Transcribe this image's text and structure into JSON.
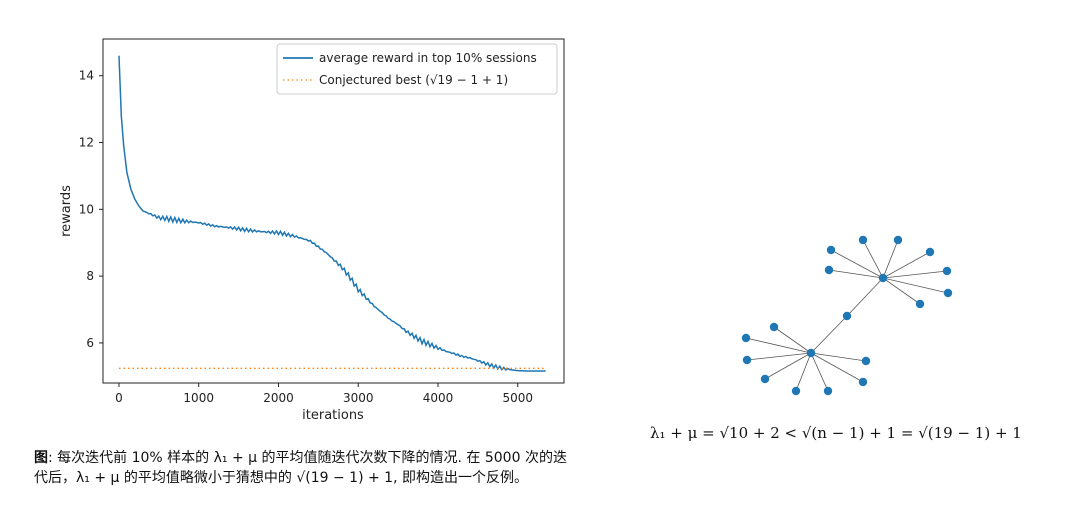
{
  "chart_data": {
    "type": "line",
    "xlabel": "iterations",
    "ylabel": "rewards",
    "xlim": [
      -200,
      5580
    ],
    "ylim": [
      4.8,
      15.1
    ],
    "xticks": [
      0,
      1000,
      2000,
      3000,
      4000,
      5000
    ],
    "yticks": [
      6,
      8,
      10,
      12,
      14
    ],
    "legend_position": "top-right",
    "series": [
      {
        "name": "average reward in top 10% sessions",
        "color": "#1f77b4",
        "style": "solid",
        "x": [
          0,
          30,
          60,
          100,
          150,
          200,
          250,
          300,
          400,
          500,
          600,
          800,
          1000,
          1200,
          1400,
          1600,
          1800,
          2000,
          2200,
          2400,
          2600,
          2800,
          2900,
          3000,
          3100,
          3200,
          3300,
          3400,
          3500,
          3600,
          3700,
          3800,
          3900,
          4000,
          4100,
          4200,
          4300,
          4400,
          4500,
          4600,
          4700,
          4800,
          4900,
          5000,
          5100,
          5200,
          5300,
          5350
        ],
        "y": [
          14.6,
          12.8,
          11.9,
          11.1,
          10.6,
          10.3,
          10.1,
          9.95,
          9.85,
          9.75,
          9.72,
          9.65,
          9.6,
          9.5,
          9.45,
          9.38,
          9.33,
          9.3,
          9.2,
          9.05,
          8.7,
          8.25,
          7.95,
          7.6,
          7.35,
          7.1,
          6.9,
          6.7,
          6.55,
          6.35,
          6.2,
          6.05,
          5.95,
          5.85,
          5.75,
          5.68,
          5.6,
          5.55,
          5.47,
          5.38,
          5.3,
          5.24,
          5.2,
          5.17,
          5.16,
          5.16,
          5.16,
          5.16
        ]
      },
      {
        "name": "Conjectured best (√19 − 1 + 1)",
        "color": "#ff7f0e",
        "style": "dotted",
        "x": [
          0,
          5350
        ],
        "y": [
          5.24,
          5.24
        ]
      }
    ]
  },
  "formula": "λ₁ + μ = √10 + 2 < √(n − 1) + 1 = √(19 − 1) + 1",
  "caption": {
    "bold": "图",
    "text": ": 每次迭代前 10% 样本的 λ₁ + μ 的平均值随迭代次数下降的情况. 在 5000 次的迭代后，λ₁ + μ 的平均值略微小于猜想中的 √(19 − 1) + 1, 即构造出一个反例。"
  },
  "graph": {
    "node_color": "#1f78b4",
    "edge_color": "#555555"
  }
}
